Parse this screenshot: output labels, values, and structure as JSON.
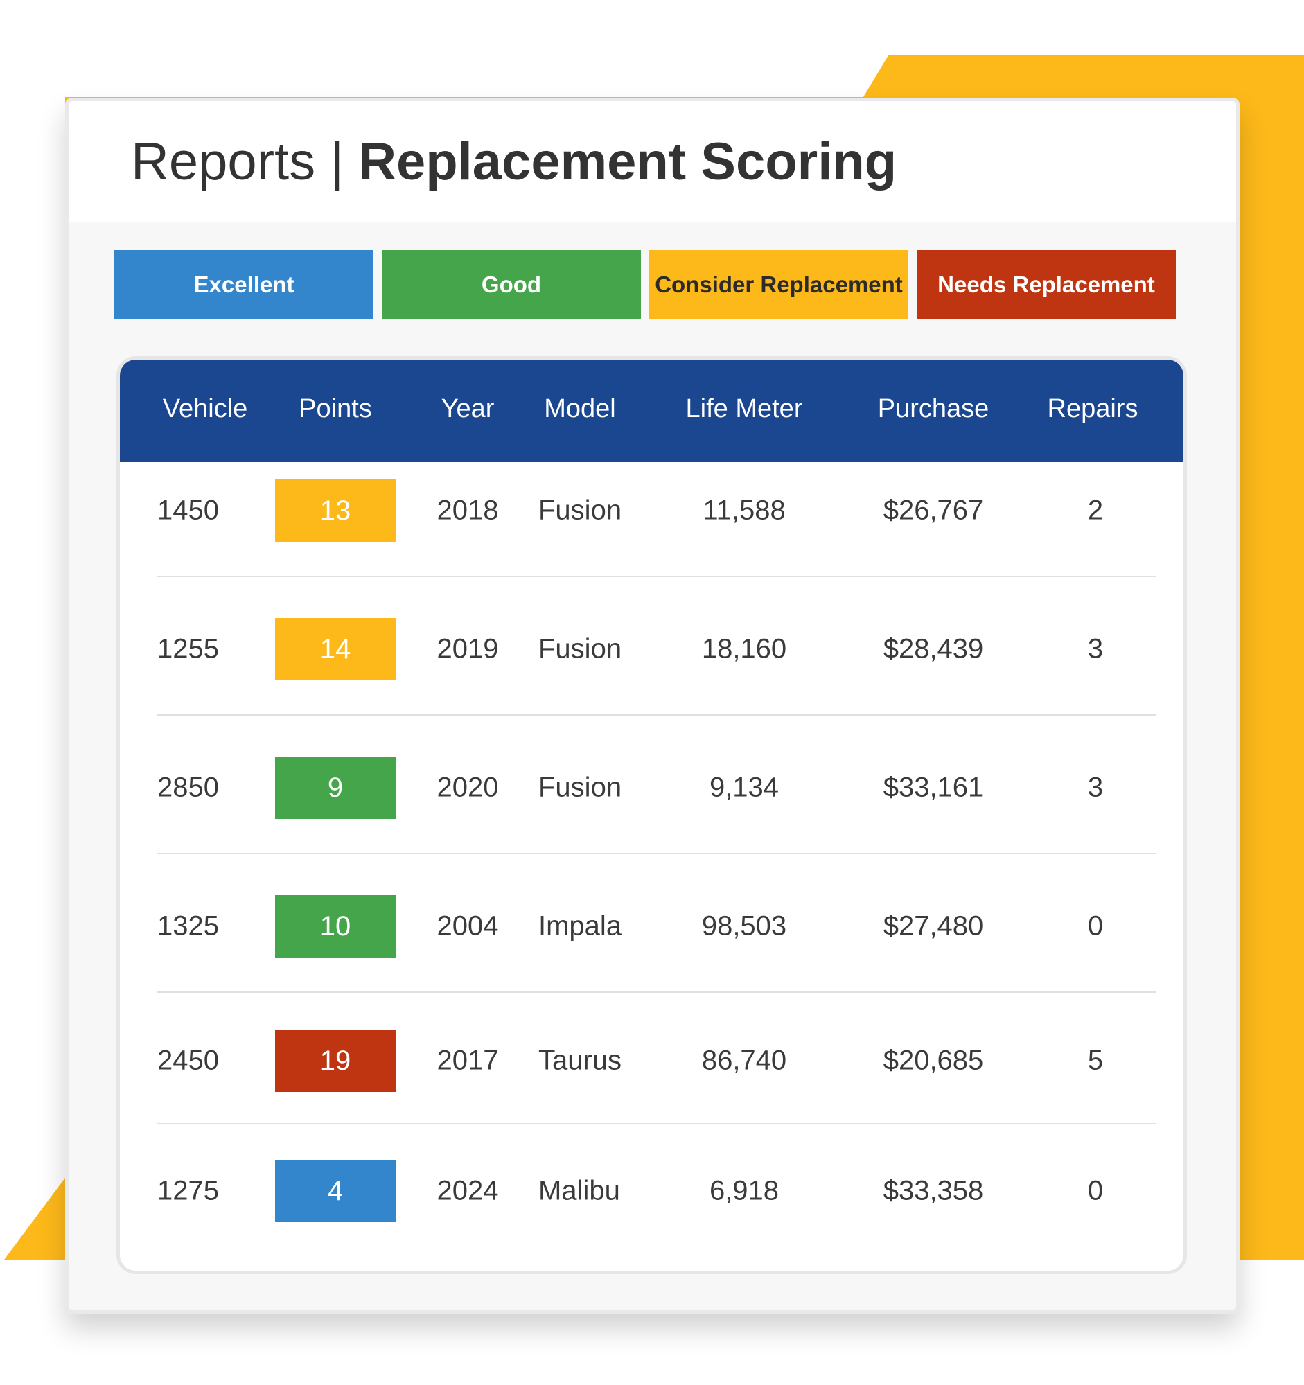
{
  "page": {
    "title_light": "Reports | ",
    "title_bold": "Replacement Scoring"
  },
  "legend": [
    {
      "label": "Excellent",
      "color": "#3385cc",
      "text_color": "#ffffff"
    },
    {
      "label": "Good",
      "color": "#45a54a",
      "text_color": "#ffffff"
    },
    {
      "label": "Consider Replacement",
      "color": "#fdb91a",
      "text_color": "#2b2b2b"
    },
    {
      "label": "Needs Replacement",
      "color": "#bf3512",
      "text_color": "#ffffff"
    }
  ],
  "table": {
    "headers": {
      "vehicle": "Vehicle",
      "points": "Points",
      "year": "Year",
      "model": "Model",
      "life_meter": "Life Meter",
      "purchase": "Purchase",
      "repairs": "Repairs"
    },
    "rows": [
      {
        "vehicle": "1450",
        "points": "13",
        "status": "consider",
        "year": "2018",
        "model": "Fusion",
        "life_meter": "11,588",
        "purchase": "$26,767",
        "repairs": "2"
      },
      {
        "vehicle": "1255",
        "points": "14",
        "status": "consider",
        "year": "2019",
        "model": "Fusion",
        "life_meter": "18,160",
        "purchase": "$28,439",
        "repairs": "3"
      },
      {
        "vehicle": "2850",
        "points": "9",
        "status": "good",
        "year": "2020",
        "model": "Fusion",
        "life_meter": "9,134",
        "purchase": "$33,161",
        "repairs": "3"
      },
      {
        "vehicle": "1325",
        "points": "10",
        "status": "good",
        "year": "2004",
        "model": "Impala",
        "life_meter": "98,503",
        "purchase": "$27,480",
        "repairs": "0"
      },
      {
        "vehicle": "2450",
        "points": "19",
        "status": "needs",
        "year": "2017",
        "model": "Taurus",
        "life_meter": "86,740",
        "purchase": "$20,685",
        "repairs": "5"
      },
      {
        "vehicle": "1275",
        "points": "4",
        "status": "excellent",
        "year": "2024",
        "model": "Malibu",
        "life_meter": "6,918",
        "purchase": "$33,358",
        "repairs": "0"
      }
    ]
  },
  "colors": {
    "accent_yellow": "#fdb91a",
    "header_blue": "#1a4790",
    "excellent": "#3385cc",
    "good": "#45a54a",
    "consider": "#fdb91a",
    "needs": "#bf3512"
  }
}
